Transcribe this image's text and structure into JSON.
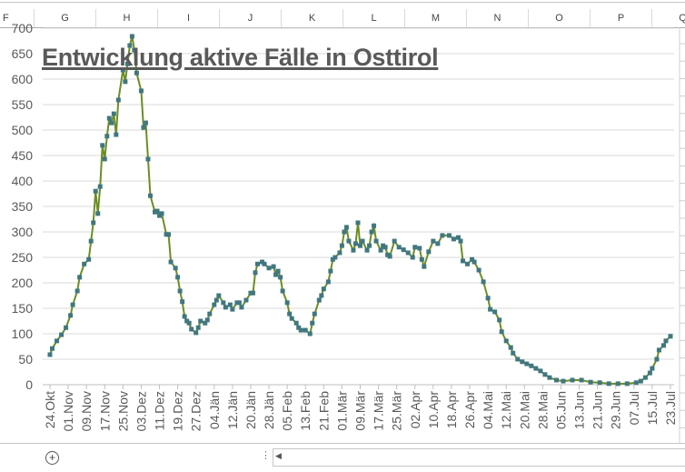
{
  "spreadsheet": {
    "columns": [
      "F",
      "G",
      "H",
      "I",
      "J",
      "K",
      "L",
      "M",
      "N",
      "O",
      "P",
      "Q"
    ],
    "add_sheet_icon": "plus-circle-icon",
    "scroll_left_icon": "triangle-left-icon"
  },
  "chart_data": {
    "type": "line",
    "title": "Entwicklung aktive Fälle in Osttirol",
    "xlabel": "",
    "ylabel": "",
    "ylim": [
      0,
      700
    ],
    "yticks": [
      0,
      50,
      100,
      150,
      200,
      250,
      300,
      350,
      400,
      450,
      500,
      550,
      600,
      650,
      700
    ],
    "xtick_labels": [
      "24.Okt",
      "01.Nov",
      "09.Nov",
      "17.Nov",
      "25.Nov",
      "03.Dez",
      "11.Dez",
      "19.Dez",
      "27.Dez",
      "04.Jän",
      "12.Jän",
      "20.Jän",
      "28.Jän",
      "05.Feb",
      "13.Feb",
      "21.Feb",
      "01.Mär",
      "09.Mär",
      "17.Mär",
      "25.Mär",
      "02.Apr",
      "10.Apr",
      "18.Apr",
      "26.Apr",
      "04.Mai",
      "12.Mai",
      "20.Mai",
      "28.Mai",
      "05.Jun",
      "13.Jun",
      "21.Jun",
      "29.Jun",
      "07.Jul",
      "15.Jul",
      "23.Jul"
    ],
    "grid": "horizontal",
    "legend": "none",
    "colors": {
      "line": "#6b8e23",
      "marker": "#41777f",
      "grid": "#d9d9d9",
      "title": "#595959"
    },
    "series": [
      {
        "points": [
          [
            "24.10",
            59
          ],
          [
            "25.10",
            71
          ],
          [
            "27.10",
            86
          ],
          [
            "29.10",
            98
          ],
          [
            "31.10",
            112
          ],
          [
            "02.11",
            136
          ],
          [
            "03.11",
            157
          ],
          [
            "05.11",
            184
          ],
          [
            "06.11",
            211
          ],
          [
            "08.11",
            237
          ],
          [
            "10.11",
            246
          ],
          [
            "11.11",
            282
          ],
          [
            "12.11",
            318
          ],
          [
            "13.11",
            380
          ],
          [
            "14.11",
            336
          ],
          [
            "15.11",
            389
          ],
          [
            "16.11",
            470
          ],
          [
            "17.11",
            443
          ],
          [
            "18.11",
            488
          ],
          [
            "19.11",
            523
          ],
          [
            "20.11",
            514
          ],
          [
            "21.11",
            532
          ],
          [
            "22.11",
            491
          ],
          [
            "23.11",
            559
          ],
          [
            "25.11",
            618
          ],
          [
            "26.11",
            595
          ],
          [
            "27.11",
            630
          ],
          [
            "28.11",
            666
          ],
          [
            "29.11",
            684
          ],
          [
            "30.11",
            657
          ],
          [
            "01.12",
            612
          ],
          [
            "03.12",
            577
          ],
          [
            "04.12",
            505
          ],
          [
            "05.12",
            514
          ],
          [
            "06.12",
            443
          ],
          [
            "07.12",
            371
          ],
          [
            "09.12",
            339
          ],
          [
            "10.12",
            341
          ],
          [
            "11.12",
            332
          ],
          [
            "12.12",
            336
          ],
          [
            "14.12",
            295
          ],
          [
            "15.12",
            295
          ],
          [
            "16.12",
            241
          ],
          [
            "18.12",
            229
          ],
          [
            "19.12",
            211
          ],
          [
            "20.12",
            184
          ],
          [
            "21.12",
            163
          ],
          [
            "22.12",
            134
          ],
          [
            "23.12",
            125
          ],
          [
            "24.12",
            121
          ],
          [
            "25.12",
            109
          ],
          [
            "27.12",
            102
          ],
          [
            "28.12",
            112
          ],
          [
            "29.12",
            125
          ],
          [
            "31.12",
            121
          ],
          [
            "01.01",
            127
          ],
          [
            "02.01",
            139
          ],
          [
            "04.01",
            157
          ],
          [
            "05.01",
            166
          ],
          [
            "06.01",
            175
          ],
          [
            "08.01",
            161
          ],
          [
            "09.01",
            152
          ],
          [
            "11.01",
            157
          ],
          [
            "12.01",
            148
          ],
          [
            "14.01",
            161
          ],
          [
            "15.01",
            161
          ],
          [
            "16.01",
            152
          ],
          [
            "18.01",
            166
          ],
          [
            "20.01",
            180
          ],
          [
            "21.01",
            180
          ],
          [
            "22.01",
            220
          ],
          [
            "23.01",
            237
          ],
          [
            "25.01",
            241
          ],
          [
            "26.01",
            237
          ],
          [
            "28.01",
            229
          ],
          [
            "30.01",
            232
          ],
          [
            "31.01",
            216
          ],
          [
            "01.02",
            223
          ],
          [
            "02.02",
            211
          ],
          [
            "03.02",
            184
          ],
          [
            "05.02",
            161
          ],
          [
            "06.02",
            139
          ],
          [
            "07.02",
            130
          ],
          [
            "09.02",
            121
          ],
          [
            "10.02",
            112
          ],
          [
            "11.02",
            107
          ],
          [
            "13.02",
            107
          ],
          [
            "15.02",
            100
          ],
          [
            "16.02",
            121
          ],
          [
            "17.02",
            139
          ],
          [
            "19.02",
            166
          ],
          [
            "20.02",
            175
          ],
          [
            "21.02",
            188
          ],
          [
            "23.02",
            202
          ],
          [
            "24.02",
            223
          ],
          [
            "25.02",
            246
          ],
          [
            "26.02",
            250
          ],
          [
            "28.02",
            259
          ],
          [
            "01.03",
            273
          ],
          [
            "02.03",
            300
          ],
          [
            "03.03",
            309
          ],
          [
            "04.03",
            282
          ],
          [
            "06.03",
            264
          ],
          [
            "07.03",
            277
          ],
          [
            "08.03",
            318
          ],
          [
            "09.03",
            273
          ],
          [
            "10.03",
            282
          ],
          [
            "12.03",
            264
          ],
          [
            "13.03",
            273
          ],
          [
            "14.03",
            300
          ],
          [
            "15.03",
            312
          ],
          [
            "16.03",
            282
          ],
          [
            "18.03",
            264
          ],
          [
            "19.03",
            273
          ],
          [
            "20.03",
            270
          ],
          [
            "21.03",
            255
          ],
          [
            "22.03",
            252
          ],
          [
            "24.03",
            282
          ],
          [
            "26.03",
            270
          ],
          [
            "28.03",
            265
          ],
          [
            "30.03",
            259
          ],
          [
            "01.04",
            250
          ],
          [
            "02.04",
            270
          ],
          [
            "04.04",
            268
          ],
          [
            "05.04",
            246
          ],
          [
            "06.04",
            232
          ],
          [
            "08.04",
            261
          ],
          [
            "10.04",
            282
          ],
          [
            "12.04",
            277
          ],
          [
            "14.04",
            293
          ],
          [
            "17.04",
            293
          ],
          [
            "19.04",
            286
          ],
          [
            "21.04",
            289
          ],
          [
            "22.04",
            282
          ],
          [
            "23.04",
            243
          ],
          [
            "25.04",
            237
          ],
          [
            "27.04",
            246
          ],
          [
            "28.04",
            241
          ],
          [
            "30.04",
            225
          ],
          [
            "02.05",
            202
          ],
          [
            "04.05",
            170
          ],
          [
            "05.05",
            148
          ],
          [
            "07.05",
            143
          ],
          [
            "09.05",
            127
          ],
          [
            "10.05",
            104
          ],
          [
            "12.05",
            86
          ],
          [
            "14.05",
            73
          ],
          [
            "15.05",
            62
          ],
          [
            "17.05",
            50
          ],
          [
            "19.05",
            45
          ],
          [
            "21.05",
            41
          ],
          [
            "23.05",
            37
          ],
          [
            "25.05",
            32
          ],
          [
            "27.05",
            27
          ],
          [
            "29.05",
            20
          ],
          [
            "31.05",
            14
          ],
          [
            "03.06",
            9
          ],
          [
            "06.06",
            7
          ],
          [
            "10.06",
            9
          ],
          [
            "14.06",
            9
          ],
          [
            "18.06",
            5
          ],
          [
            "22.06",
            4
          ],
          [
            "26.06",
            2
          ],
          [
            "30.06",
            2
          ],
          [
            "04.07",
            2
          ],
          [
            "08.07",
            4
          ],
          [
            "10.07",
            7
          ],
          [
            "12.07",
            14
          ],
          [
            "14.07",
            23
          ],
          [
            "15.07",
            32
          ],
          [
            "17.07",
            50
          ],
          [
            "18.07",
            68
          ],
          [
            "20.07",
            77
          ],
          [
            "21.07",
            86
          ],
          [
            "23.07",
            95
          ]
        ]
      }
    ]
  }
}
